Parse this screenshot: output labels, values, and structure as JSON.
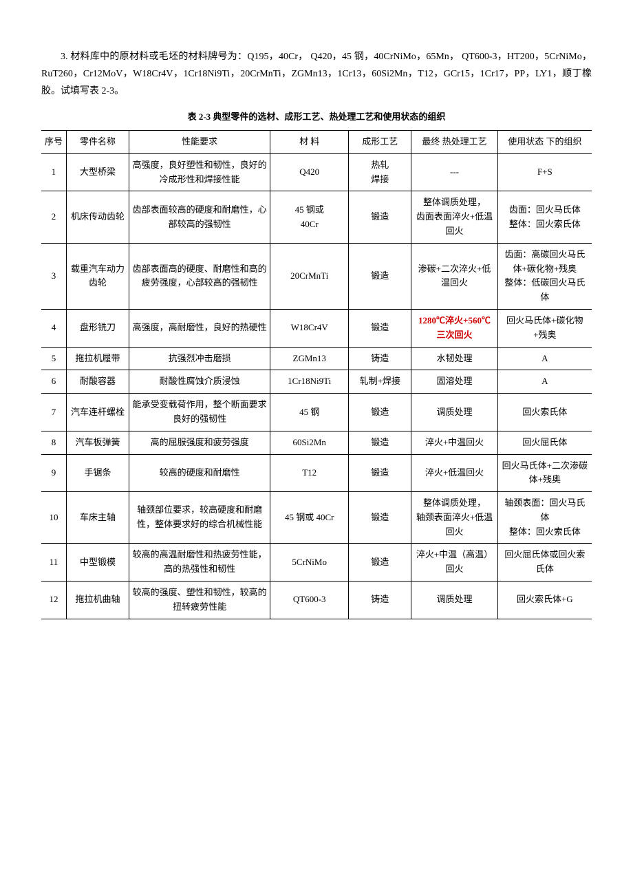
{
  "intro": "3. 材料库中的原材料或毛坯的材料牌号为：Q195，40Cr，  Q420，45 钢，40CrNiMo，65Mn，  QT600-3，HT200，5CrNiMo，RuT260，Cr12MoV，W18Cr4V，1Cr18Ni9Ti，20CrMnTi，ZGMn13，1Cr13，60Si2Mn，T12，GCr15，1Cr17，PP，LY1，顺丁橡胶。试填写表 2-3。",
  "table_title": "表 2-3  典型零件的选材、成形工艺、热处理工艺和使用状态的组织",
  "headers": {
    "idx": "序号",
    "name": "零件名称",
    "req": "性能要求",
    "mat": "材  料",
    "form": "成形工艺",
    "heat": "最终\n热处理工艺",
    "org": "使用状态\n下的组织"
  },
  "rows": [
    {
      "idx": "1",
      "name": "大型桥梁",
      "req": "高强度，良好塑性和韧性，良好的冷成形性和焊接性能",
      "mat": "Q420",
      "form": "热轧\n焊接",
      "heat": "---",
      "org": "F+S"
    },
    {
      "idx": "2",
      "name": "机床传动齿轮",
      "req": "齿部表面较高的硬度和耐磨性，心部较高的强韧性",
      "mat": "45 钢或\n40Cr",
      "form": "锻造",
      "heat": "整体调质处理，\n齿面表面淬火+低温回火",
      "org": "齿面：回火马氏体\n整体：回火索氏体"
    },
    {
      "idx": "3",
      "name": "载重汽车动力齿轮",
      "req": "齿部表面高的硬度、耐磨性和高的疲劳强度，心部较高的强韧性",
      "mat": "20CrMnTi",
      "form": "锻造",
      "heat": "渗碳+二次淬火+低温回火",
      "org": "齿面：高碳回火马氏体+碳化物+残奥\n整体：低碳回火马氏体"
    },
    {
      "idx": "4",
      "name": "盘形铣刀",
      "req": "高强度，高耐磨性，良好的热硬性",
      "mat": "W18Cr4V",
      "form": "锻造",
      "heat": "1280℃淬火+560℃三次回火",
      "heat_highlight": true,
      "org": "回火马氏体+碳化物+残奥"
    },
    {
      "idx": "5",
      "name": "拖拉机履带",
      "req": "抗强烈冲击磨损",
      "mat": "ZGMn13",
      "form": "铸造",
      "heat": "水韧处理",
      "org": "A"
    },
    {
      "idx": "6",
      "name": "耐酸容器",
      "req": "耐酸性腐蚀介质浸蚀",
      "mat": "1Cr18Ni9Ti",
      "form": "轧制+焊接",
      "heat": "固溶处理",
      "org": "A"
    },
    {
      "idx": "7",
      "name": "汽车连杆螺栓",
      "req": "能承受变载荷作用，整个断面要求良好的强韧性",
      "mat": "45 钢",
      "form": "锻造",
      "heat": "调质处理",
      "org": "回火索氏体"
    },
    {
      "idx": "8",
      "name": "汽车板弹簧",
      "req": "高的屈服强度和疲劳强度",
      "mat": "60Si2Mn",
      "form": "锻造",
      "heat": "淬火+中温回火",
      "org": "回火屈氏体"
    },
    {
      "idx": "9",
      "name": "手锯条",
      "req": "较高的硬度和耐磨性",
      "mat": "T12",
      "form": "锻造",
      "heat": "淬火+低温回火",
      "org": "回火马氏体+二次渗碳体+残奥"
    },
    {
      "idx": "10",
      "name": "车床主轴",
      "req": "轴颈部位要求，较高硬度和耐磨性，整体要求好的综合机械性能",
      "mat": "45 钢或 40Cr",
      "form": "锻造",
      "heat": "整体调质处理，\n轴颈表面淬火+低温回火",
      "org": "轴颈表面：回火马氏体\n整体：回火索氏体"
    },
    {
      "idx": "11",
      "name": "中型锻模",
      "req": "较高的高温耐磨性和热疲劳性能，高的热强性和韧性",
      "mat": "5CrNiMo",
      "form": "锻造",
      "heat": "淬火+中温（高温）回火",
      "org": "回火屈氏体或回火索氏体"
    },
    {
      "idx": "12",
      "name": "拖拉机曲轴",
      "req": "较高的强度、塑性和韧性，较高的扭转疲劳性能",
      "mat": "QT600-3",
      "form": "铸造",
      "heat": "调质处理",
      "org": "回火索氏体+G"
    }
  ]
}
